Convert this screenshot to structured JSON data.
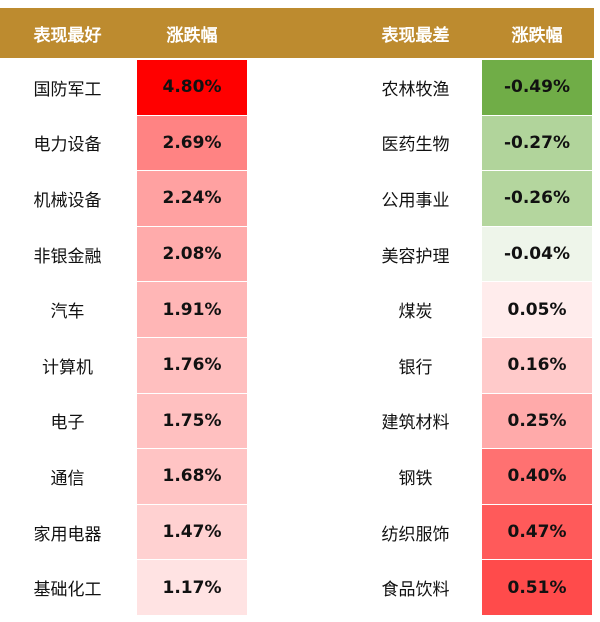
{
  "left": {
    "header": [
      "表现最好",
      "涨跌幅"
    ],
    "rows": [
      {
        "name": "国防军工",
        "change": "4.80%",
        "color": "#ff0000"
      },
      {
        "name": "电力设备",
        "change": "2.69%",
        "color": "#ff8383"
      },
      {
        "name": "机械设备",
        "change": "2.24%",
        "color": "#ffa1a1"
      },
      {
        "name": "非银金融",
        "change": "2.08%",
        "color": "#ffabab"
      },
      {
        "name": "汽车",
        "change": "1.91%",
        "color": "#ffb6b6"
      },
      {
        "name": "计算机",
        "change": "1.76%",
        "color": "#ffbfbf"
      },
      {
        "name": "电子",
        "change": "1.75%",
        "color": "#ffc0c0"
      },
      {
        "name": "通信",
        "change": "1.68%",
        "color": "#ffc4c4"
      },
      {
        "name": "家用电器",
        "change": "1.47%",
        "color": "#ffd1d1"
      },
      {
        "name": "基础化工",
        "change": "1.17%",
        "color": "#ffe3e3"
      }
    ]
  },
  "right": {
    "header": [
      "表现最差",
      "涨跌幅"
    ],
    "rows": [
      {
        "name": "农林牧渔",
        "change": "-0.49%",
        "color": "#70ad47"
      },
      {
        "name": "医药生物",
        "change": "-0.27%",
        "color": "#b1d49b"
      },
      {
        "name": "公用事业",
        "change": "-0.26%",
        "color": "#b4d69e"
      },
      {
        "name": "美容护理",
        "change": "-0.04%",
        "color": "#eef5ea"
      },
      {
        "name": "煤炭",
        "change": "0.05%",
        "color": "#ffecec"
      },
      {
        "name": "银行",
        "change": "0.16%",
        "color": "#ffcaca"
      },
      {
        "name": "建筑材料",
        "change": "0.25%",
        "color": "#ffaaaa"
      },
      {
        "name": "钢铁",
        "change": "0.40%",
        "color": "#ff7171"
      },
      {
        "name": "纺织服饰",
        "change": "0.47%",
        "color": "#ff5a5a"
      },
      {
        "name": "食品饮料",
        "change": "0.51%",
        "color": "#ff4b4b"
      }
    ]
  }
}
